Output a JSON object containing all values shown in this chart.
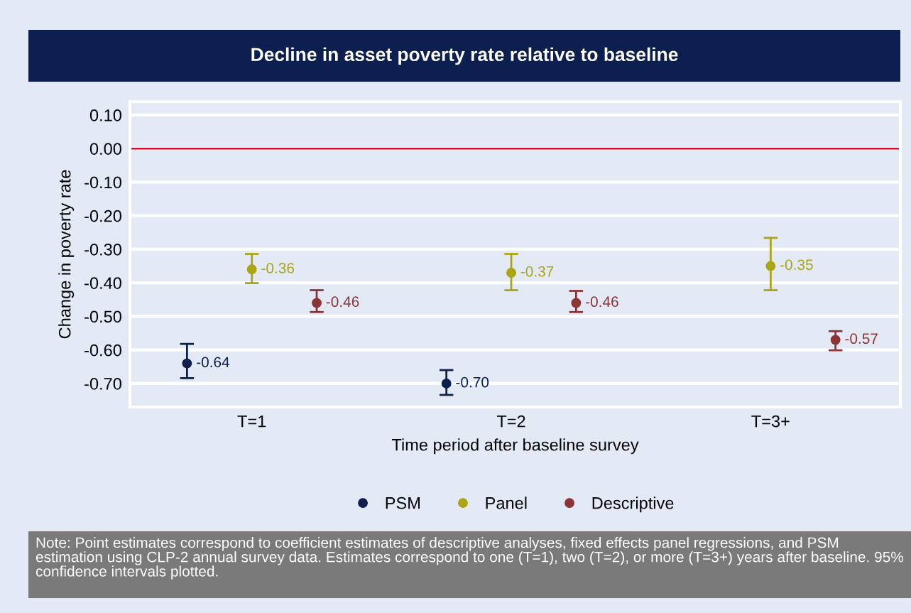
{
  "chart_data": {
    "type": "scatter",
    "title": "Decline in asset poverty rate relative to baseline",
    "xlabel": "Time period after baseline survey",
    "ylabel": "Change in poverty rate",
    "categories": [
      "T=1",
      "T=2",
      "T=3+"
    ],
    "series": [
      {
        "name": "PSM",
        "color": "#0c2050",
        "values": [
          -0.64,
          -0.7,
          null
        ],
        "value_labels": [
          "-0.64",
          "-0.70",
          null
        ],
        "errors": [
          [
            -0.684,
            -0.582
          ],
          [
            -0.734,
            -0.66
          ],
          null
        ]
      },
      {
        "name": "Panel",
        "color": "#a9a514",
        "values": [
          -0.36,
          -0.37,
          -0.35
        ],
        "value_labels": [
          "-0.36",
          "-0.37",
          "-0.35"
        ],
        "errors": [
          [
            -0.401,
            -0.314
          ],
          [
            -0.422,
            -0.314
          ],
          [
            -0.422,
            -0.266
          ]
        ]
      },
      {
        "name": "Descriptive",
        "color": "#8c3538",
        "values": [
          -0.46,
          -0.46,
          -0.57
        ],
        "value_labels": [
          "-0.46",
          "-0.46",
          "-0.57"
        ],
        "errors": [
          [
            -0.487,
            -0.422
          ],
          [
            -0.487,
            -0.424
          ],
          [
            -0.601,
            -0.544
          ]
        ]
      }
    ],
    "ylim": [
      -0.77,
      0.14
    ],
    "yticks": [
      {
        "value": 0.1,
        "label": "0.10"
      },
      {
        "value": 0.0,
        "label": "0.00"
      },
      {
        "value": -0.1,
        "label": "-0.10"
      },
      {
        "value": -0.2,
        "label": "-0.20"
      },
      {
        "value": -0.3,
        "label": "-0.30"
      },
      {
        "value": -0.4,
        "label": "-0.40"
      },
      {
        "value": -0.5,
        "label": "-0.50"
      },
      {
        "value": -0.6,
        "label": "-0.60"
      },
      {
        "value": -0.7,
        "label": "-0.70"
      }
    ],
    "ref_lines": [
      {
        "axis": "y",
        "value": 0.0,
        "color": "#c8102e"
      }
    ],
    "grid": "y",
    "legend": "bottom",
    "marker": "circle",
    "annotations": [
      "Note: Point estimates correspond to coefficient estimates of descriptive analyses, fixed effects panel regressions, and PSM estimation using CLP-2 annual survey data. Estimates correspond to one (T=1), two (T=2), or more (T=3+) years after baseline. 95% confidence intervals plotted."
    ]
  }
}
